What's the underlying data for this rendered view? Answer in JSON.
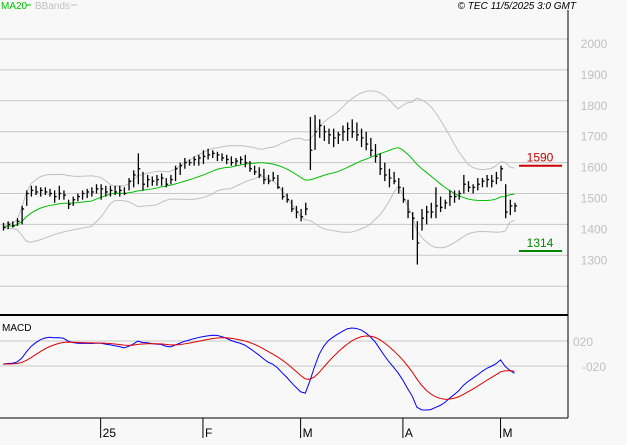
{
  "legend": {
    "ma_label": "MA20",
    "bb_label": "BBands"
  },
  "copyright": "© TEC 11/5/2025 3:0 GMT",
  "macd_label": "MACD",
  "colors": {
    "bars": "#000000",
    "ma": "#00c000",
    "bbands": "#c0c0c0",
    "macd": "#0000ff",
    "signal": "#e00000",
    "resistance": "#cc0000",
    "support": "#008800",
    "grid": "#c8c8c8",
    "axis_text": "#c0c0c0"
  },
  "chart_data": {
    "type": "ohlc",
    "price_ticks": [
      2000,
      1900,
      1800,
      1700,
      1600,
      1500,
      1400,
      1300
    ],
    "price_tick_labels": [
      "2000",
      "1900",
      "1800",
      "1700",
      "1600",
      "1500",
      "1400",
      "1300"
    ],
    "ylim": [
      1200,
      2000
    ],
    "macd_tick_labels": [
      "020",
      "-020"
    ],
    "x_tick_labels": [
      {
        "label": "25",
        "bar": 21
      },
      {
        "label": "F",
        "bar": 43
      },
      {
        "label": "M",
        "bar": 64
      },
      {
        "label": "A",
        "bar": 86
      },
      {
        "label": "M",
        "bar": 107
      }
    ],
    "resistance": {
      "value": 1590,
      "label": "1590"
    },
    "support": {
      "value": 1314,
      "label": "1314"
    },
    "bars_hlc": [
      [
        1405,
        1380,
        1390
      ],
      [
        1410,
        1385,
        1400
      ],
      [
        1410,
        1390,
        1395
      ],
      [
        1420,
        1395,
        1410
      ],
      [
        1460,
        1400,
        1450
      ],
      [
        1510,
        1460,
        1500
      ],
      [
        1525,
        1490,
        1510
      ],
      [
        1525,
        1495,
        1505
      ],
      [
        1520,
        1490,
        1510
      ],
      [
        1520,
        1495,
        1505
      ],
      [
        1515,
        1490,
        1500
      ],
      [
        1510,
        1470,
        1490
      ],
      [
        1525,
        1480,
        1500
      ],
      [
        1510,
        1480,
        1495
      ],
      [
        1480,
        1450,
        1465
      ],
      [
        1490,
        1460,
        1480
      ],
      [
        1500,
        1475,
        1490
      ],
      [
        1510,
        1480,
        1500
      ],
      [
        1515,
        1485,
        1505
      ],
      [
        1520,
        1490,
        1505
      ],
      [
        1530,
        1500,
        1515
      ],
      [
        1530,
        1480,
        1515
      ],
      [
        1525,
        1490,
        1505
      ],
      [
        1525,
        1490,
        1510
      ],
      [
        1525,
        1495,
        1505
      ],
      [
        1525,
        1490,
        1510
      ],
      [
        1520,
        1495,
        1500
      ],
      [
        1550,
        1510,
        1540
      ],
      [
        1575,
        1520,
        1560
      ],
      [
        1630,
        1530,
        1580
      ],
      [
        1570,
        1510,
        1530
      ],
      [
        1560,
        1520,
        1545
      ],
      [
        1555,
        1525,
        1540
      ],
      [
        1560,
        1525,
        1545
      ],
      [
        1565,
        1525,
        1550
      ],
      [
        1550,
        1520,
        1530
      ],
      [
        1560,
        1530,
        1545
      ],
      [
        1590,
        1540,
        1580
      ],
      [
        1600,
        1560,
        1590
      ],
      [
        1615,
        1580,
        1600
      ],
      [
        1610,
        1590,
        1600
      ],
      [
        1620,
        1590,
        1610
      ],
      [
        1625,
        1590,
        1615
      ],
      [
        1640,
        1595,
        1620
      ],
      [
        1645,
        1610,
        1625
      ],
      [
        1640,
        1615,
        1630
      ],
      [
        1635,
        1605,
        1625
      ],
      [
        1630,
        1605,
        1615
      ],
      [
        1625,
        1595,
        1610
      ],
      [
        1620,
        1590,
        1600
      ],
      [
        1615,
        1590,
        1605
      ],
      [
        1620,
        1595,
        1610
      ],
      [
        1625,
        1585,
        1600
      ],
      [
        1605,
        1570,
        1580
      ],
      [
        1590,
        1560,
        1570
      ],
      [
        1585,
        1550,
        1560
      ],
      [
        1580,
        1530,
        1545
      ],
      [
        1560,
        1530,
        1540
      ],
      [
        1570,
        1540,
        1550
      ],
      [
        1560,
        1515,
        1520
      ],
      [
        1520,
        1480,
        1490
      ],
      [
        1500,
        1470,
        1480
      ],
      [
        1480,
        1440,
        1450
      ],
      [
        1460,
        1420,
        1440
      ],
      [
        1450,
        1410,
        1425
      ],
      [
        1470,
        1430,
        1450
      ],
      [
        1748,
        1576,
        1640
      ],
      [
        1754,
        1641,
        1700
      ],
      [
        1740,
        1680,
        1720
      ],
      [
        1720,
        1670,
        1700
      ],
      [
        1710,
        1660,
        1690
      ],
      [
        1710,
        1650,
        1680
      ],
      [
        1700,
        1660,
        1690
      ],
      [
        1720,
        1670,
        1700
      ],
      [
        1730,
        1670,
        1710
      ],
      [
        1740,
        1680,
        1700
      ],
      [
        1730,
        1670,
        1690
      ],
      [
        1710,
        1650,
        1680
      ],
      [
        1700,
        1640,
        1660
      ],
      [
        1680,
        1620,
        1640
      ],
      [
        1660,
        1600,
        1620
      ],
      [
        1630,
        1560,
        1580
      ],
      [
        1600,
        1540,
        1560
      ],
      [
        1580,
        1520,
        1550
      ],
      [
        1570,
        1530,
        1540
      ],
      [
        1550,
        1500,
        1520
      ],
      [
        1520,
        1470,
        1480
      ],
      [
        1480,
        1420,
        1440
      ],
      [
        1440,
        1350,
        1420
      ],
      [
        1410,
        1270,
        1340
      ],
      [
        1450,
        1380,
        1420
      ],
      [
        1460,
        1400,
        1440
      ],
      [
        1470,
        1420,
        1440
      ],
      [
        1520,
        1420,
        1460
      ],
      [
        1490,
        1440,
        1455
      ],
      [
        1480,
        1450,
        1470
      ],
      [
        1510,
        1460,
        1490
      ],
      [
        1510,
        1470,
        1490
      ],
      [
        1510,
        1480,
        1500
      ],
      [
        1560,
        1500,
        1530
      ],
      [
        1540,
        1505,
        1520
      ],
      [
        1530,
        1500,
        1520
      ],
      [
        1550,
        1510,
        1530
      ],
      [
        1550,
        1520,
        1540
      ],
      [
        1560,
        1520,
        1545
      ],
      [
        1560,
        1520,
        1540
      ],
      [
        1570,
        1530,
        1550
      ],
      [
        1590,
        1540,
        1580
      ],
      [
        1530,
        1420,
        1440
      ],
      [
        1480,
        1430,
        1460
      ],
      [
        1470,
        1440,
        1460
      ]
    ]
  }
}
